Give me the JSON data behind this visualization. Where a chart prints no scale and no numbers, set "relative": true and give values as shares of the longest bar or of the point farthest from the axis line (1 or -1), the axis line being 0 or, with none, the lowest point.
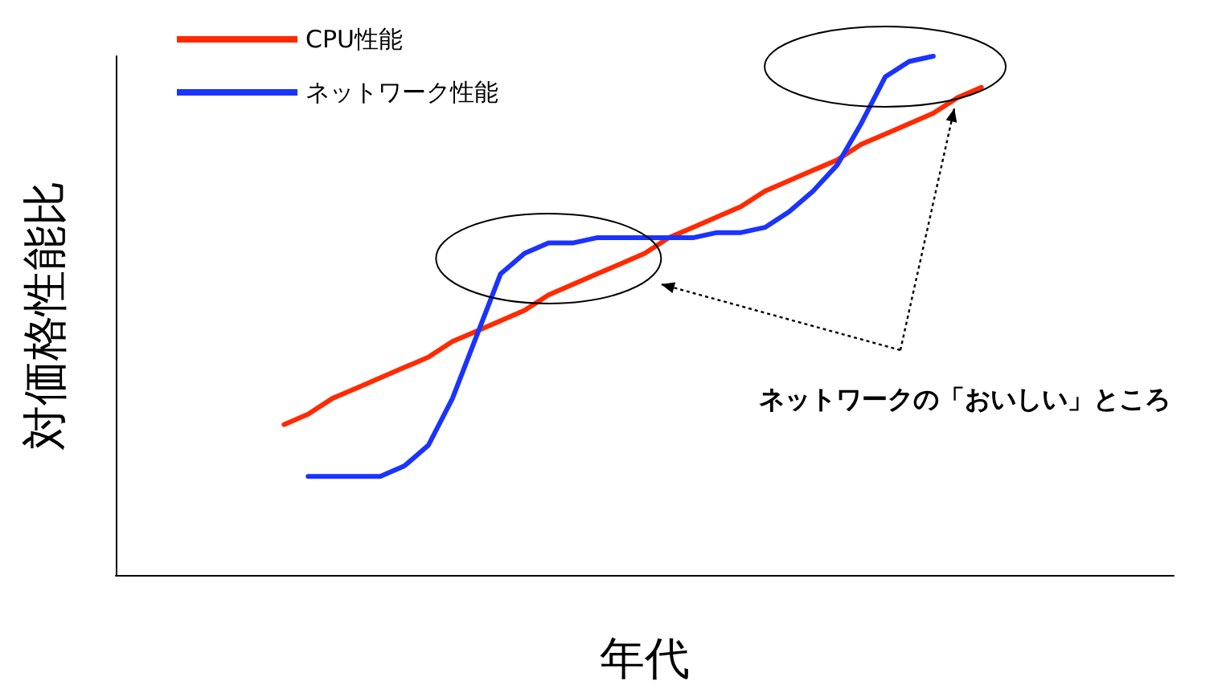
{
  "chart_data": {
    "type": "line",
    "relative": true,
    "xlabel": "年代",
    "ylabel": "対価格性能比",
    "legend": "top left",
    "marker": "none",
    "line_style": "solid",
    "grid": false,
    "annotations": [
      "ネットワークの「おいしい」ところ"
    ],
    "categories": [
      null,
      null,
      null,
      null,
      null,
      null,
      null,
      null,
      null,
      null,
      null,
      null,
      null,
      null,
      null,
      null,
      null,
      null,
      null,
      null,
      null,
      null,
      null,
      null,
      null,
      null,
      null,
      null,
      null,
      null,
      null,
      null,
      null,
      null,
      null,
      null,
      null,
      null,
      null,
      null,
      null,
      null,
      null,
      null,
      null
    ],
    "series": [
      {
        "name": "CPU性能",
        "color": "#ff2a00",
        "values": [
          null,
          null,
          null,
          null,
          null,
          null,
          null,
          0.29,
          0.31,
          0.34,
          0.36,
          0.38,
          0.4,
          0.42,
          0.45,
          0.47,
          0.49,
          0.51,
          0.54,
          0.56,
          0.58,
          0.6,
          0.62,
          0.65,
          0.67,
          0.69,
          0.71,
          0.74,
          0.76,
          0.78,
          0.8,
          0.83,
          0.85,
          0.87,
          0.89,
          0.92,
          0.94,
          null,
          null,
          null,
          null,
          null,
          null,
          null,
          null
        ]
      },
      {
        "name": "ネットワーク性能",
        "color": "#1a33ff",
        "values": [
          null,
          null,
          null,
          null,
          null,
          null,
          null,
          null,
          0.19,
          0.19,
          0.19,
          0.19,
          0.21,
          0.25,
          0.34,
          0.46,
          0.58,
          0.62,
          0.64,
          0.64,
          0.65,
          0.65,
          0.65,
          0.65,
          0.65,
          0.66,
          0.66,
          0.67,
          0.7,
          0.74,
          0.79,
          0.87,
          0.96,
          0.99,
          1.0,
          null,
          null,
          null,
          null,
          null,
          null,
          null,
          null,
          null,
          null
        ]
      }
    ]
  }
}
